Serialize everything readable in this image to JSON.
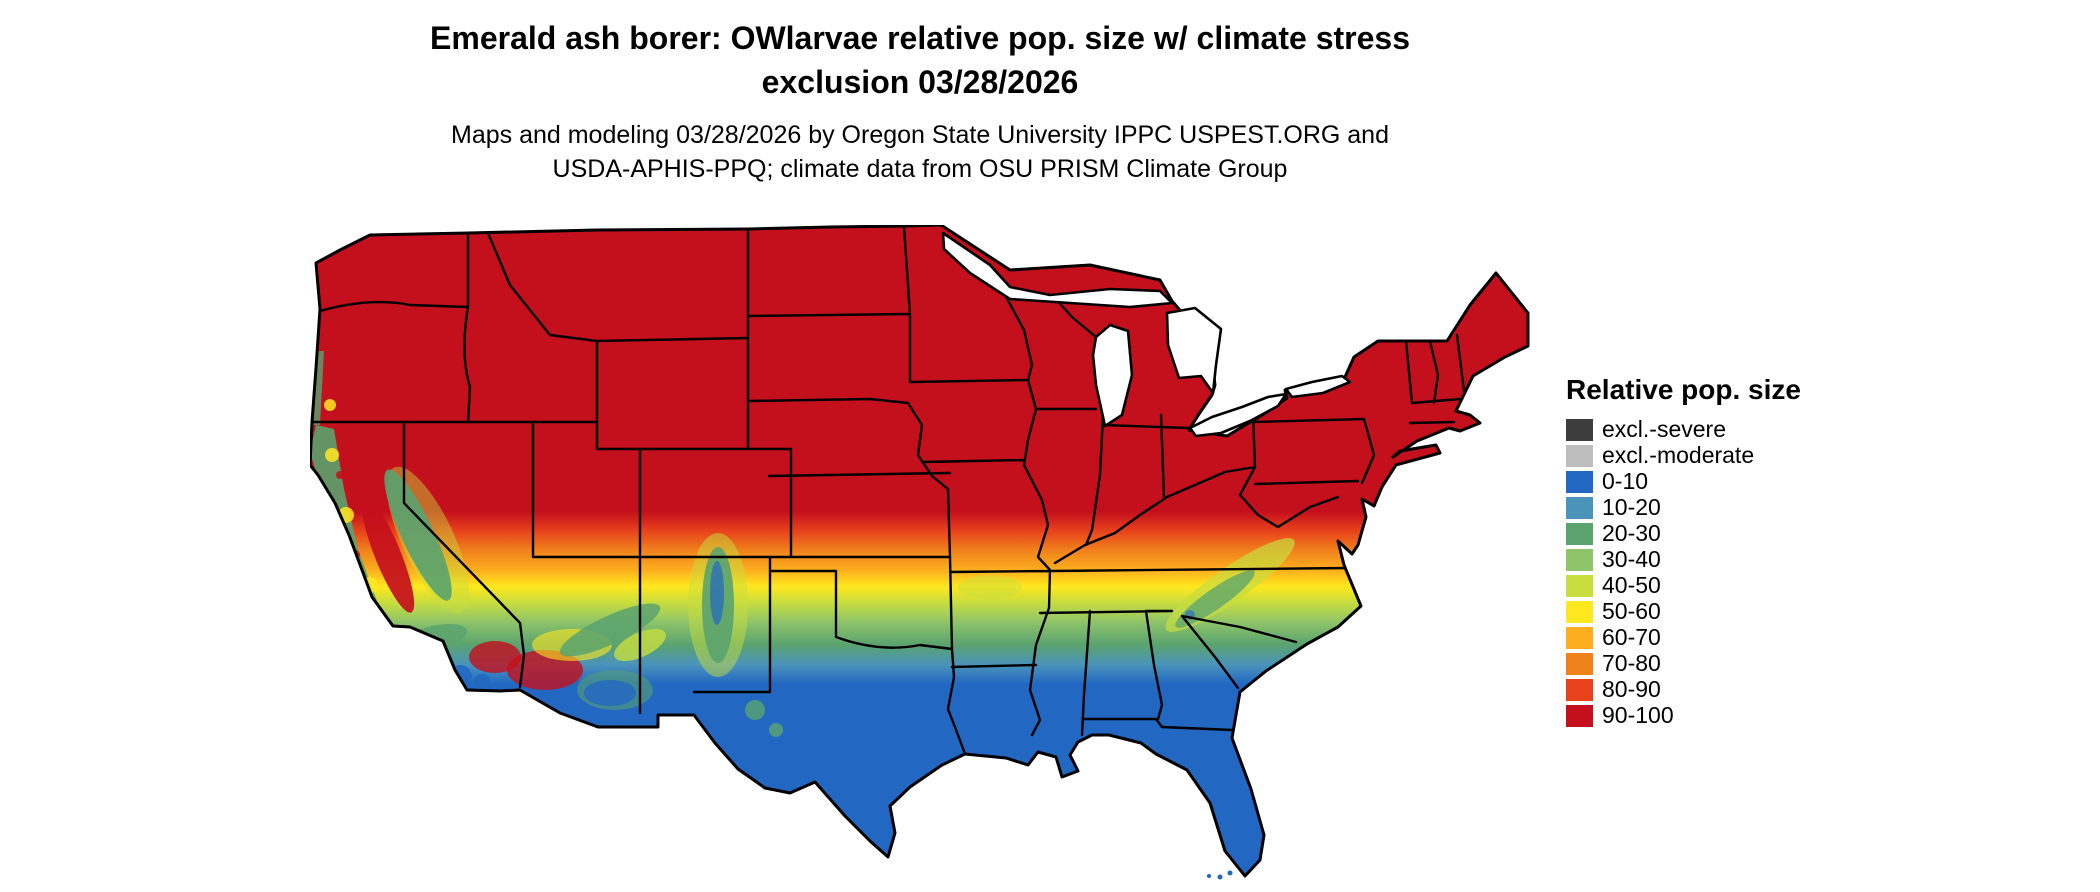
{
  "header": {
    "title_line1": "Emerald ash borer: OWlarvae relative pop. size w/ climate stress",
    "title_line2": "exclusion 03/28/2026",
    "subtitle_line1": "Maps and modeling 03/28/2026 by Oregon State University IPPC USPEST.ORG and",
    "subtitle_line2": "USDA-APHIS-PPQ; climate data from OSU PRISM Climate Group"
  },
  "legend": {
    "title": "Relative pop. size",
    "items": [
      {
        "label": "excl.-severe",
        "color": "#3d3d3d"
      },
      {
        "label": "excl.-moderate",
        "color": "#bdbdbd"
      },
      {
        "label": "0-10",
        "color": "#2268c2"
      },
      {
        "label": "10-20",
        "color": "#4a94ba"
      },
      {
        "label": "20-30",
        "color": "#5aa36f"
      },
      {
        "label": "30-40",
        "color": "#8ec46a"
      },
      {
        "label": "40-50",
        "color": "#c8dd3e"
      },
      {
        "label": "50-60",
        "color": "#ffe81e"
      },
      {
        "label": "60-70",
        "color": "#fcae1e"
      },
      {
        "label": "70-80",
        "color": "#f0821c"
      },
      {
        "label": "80-90",
        "color": "#e8421c"
      },
      {
        "label": "90-100",
        "color": "#c40f1c"
      }
    ]
  },
  "map": {
    "region": "Contiguous United States",
    "type": "choropleth raster map with state boundaries",
    "pattern": "Relative population size is highest (90-100, dark red) across the northern U.S., grading through orange and yellow in the central plains and mid-south to green, then lowest (0-10, blue) along the Gulf Coast, southern Texas, Florida and the desert Southwest; montane areas of California, the Southwest Rockies and the southern Appalachians show locally lower (green/blue) values."
  }
}
